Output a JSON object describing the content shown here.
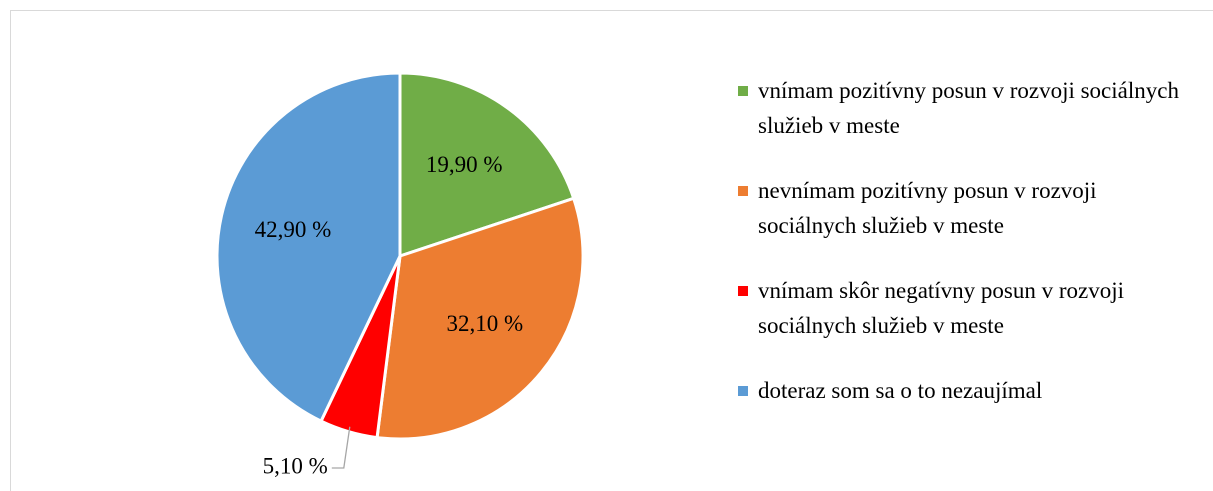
{
  "chart_data": {
    "type": "pie",
    "categories": [
      "vnímam pozitívny posun v rozvoji sociálnych služieb v meste",
      "nevnímam pozitívny posun v rozvoji sociálnych služieb v meste",
      "vnímam skôr negatívny posun v rozvoji sociálnych služieb v meste",
      "doteraz som sa o to nezaujímal"
    ],
    "values": [
      19.9,
      32.1,
      5.1,
      42.9
    ],
    "value_labels": [
      "19,90 %",
      "32,10 %",
      "5,10 %",
      "42,90 %"
    ],
    "colors": [
      "#70ad47",
      "#ed7d31",
      "#ff0000",
      "#5b9bd5"
    ],
    "legend": "right"
  }
}
